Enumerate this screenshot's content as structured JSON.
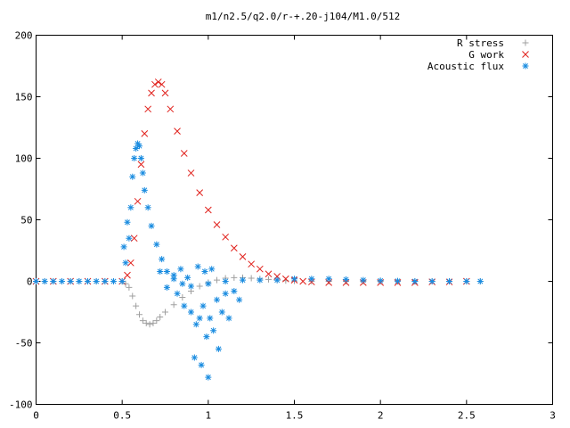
{
  "chart_data": {
    "type": "scatter",
    "title": "m1/n2.5/q2.0/r-+.20-j104/M1.0/512",
    "xlabel": "",
    "ylabel": "",
    "xlim": [
      0,
      3
    ],
    "ylim": [
      -100,
      200
    ],
    "x_ticks": [
      {
        "value": 0,
        "label": "0"
      },
      {
        "value": 0.5,
        "label": "0.5"
      },
      {
        "value": 1,
        "label": "1"
      },
      {
        "value": 1.5,
        "label": "1.5"
      },
      {
        "value": 2,
        "label": "2"
      },
      {
        "value": 2.5,
        "label": "2.5"
      },
      {
        "value": 3,
        "label": "3"
      }
    ],
    "y_ticks": [
      {
        "value": -100,
        "label": "-100"
      },
      {
        "value": -50,
        "label": "-50"
      },
      {
        "value": 0,
        "label": "0"
      },
      {
        "value": 50,
        "label": "50"
      },
      {
        "value": 100,
        "label": "100"
      },
      {
        "value": 150,
        "label": "150"
      },
      {
        "value": 200,
        "label": "200"
      }
    ],
    "grid": false,
    "legend_position": "top-right",
    "series": [
      {
        "name": "R stress",
        "marker": "plus",
        "color": "#a0a0a0",
        "points": [
          [
            0.0,
            0
          ],
          [
            0.05,
            0
          ],
          [
            0.1,
            0
          ],
          [
            0.15,
            0
          ],
          [
            0.2,
            0
          ],
          [
            0.25,
            0
          ],
          [
            0.3,
            0
          ],
          [
            0.35,
            0
          ],
          [
            0.4,
            0
          ],
          [
            0.45,
            0
          ],
          [
            0.5,
            0
          ],
          [
            0.52,
            -2
          ],
          [
            0.54,
            -5
          ],
          [
            0.56,
            -12
          ],
          [
            0.58,
            -20
          ],
          [
            0.6,
            -27
          ],
          [
            0.62,
            -32
          ],
          [
            0.64,
            -34
          ],
          [
            0.66,
            -35
          ],
          [
            0.68,
            -34
          ],
          [
            0.7,
            -32
          ],
          [
            0.72,
            -29
          ],
          [
            0.75,
            -25
          ],
          [
            0.8,
            -19
          ],
          [
            0.85,
            -13
          ],
          [
            0.9,
            -8
          ],
          [
            0.95,
            -4
          ],
          [
            1.0,
            -1
          ],
          [
            1.05,
            1
          ],
          [
            1.1,
            2.5
          ],
          [
            1.15,
            3
          ],
          [
            1.2,
            3
          ],
          [
            1.25,
            2.5
          ],
          [
            1.3,
            2
          ],
          [
            1.35,
            1.5
          ],
          [
            1.4,
            1
          ],
          [
            1.45,
            0.5
          ],
          [
            1.5,
            0.3
          ],
          [
            1.6,
            0.1
          ],
          [
            1.7,
            0
          ],
          [
            1.8,
            0
          ],
          [
            1.9,
            0
          ],
          [
            2.0,
            0
          ],
          [
            2.1,
            0
          ],
          [
            2.2,
            0
          ],
          [
            2.3,
            0
          ],
          [
            2.4,
            0
          ],
          [
            2.5,
            0
          ],
          [
            2.58,
            0
          ]
        ]
      },
      {
        "name": "G work",
        "marker": "cross",
        "color": "#e0201b",
        "points": [
          [
            0.0,
            0
          ],
          [
            0.1,
            0
          ],
          [
            0.2,
            0
          ],
          [
            0.3,
            0
          ],
          [
            0.4,
            0
          ],
          [
            0.5,
            0
          ],
          [
            0.53,
            5
          ],
          [
            0.55,
            15
          ],
          [
            0.57,
            35
          ],
          [
            0.59,
            65
          ],
          [
            0.61,
            95
          ],
          [
            0.63,
            120
          ],
          [
            0.65,
            140
          ],
          [
            0.67,
            153
          ],
          [
            0.69,
            160
          ],
          [
            0.71,
            162
          ],
          [
            0.73,
            160
          ],
          [
            0.75,
            153
          ],
          [
            0.78,
            140
          ],
          [
            0.82,
            122
          ],
          [
            0.86,
            104
          ],
          [
            0.9,
            88
          ],
          [
            0.95,
            72
          ],
          [
            1.0,
            58
          ],
          [
            1.05,
            46
          ],
          [
            1.1,
            36
          ],
          [
            1.15,
            27
          ],
          [
            1.2,
            20
          ],
          [
            1.25,
            14
          ],
          [
            1.3,
            10
          ],
          [
            1.35,
            6
          ],
          [
            1.4,
            4
          ],
          [
            1.45,
            2
          ],
          [
            1.5,
            1
          ],
          [
            1.55,
            0
          ],
          [
            1.6,
            -0.5
          ],
          [
            1.7,
            -1
          ],
          [
            1.8,
            -1
          ],
          [
            1.9,
            -1
          ],
          [
            2.0,
            -1
          ],
          [
            2.1,
            -1
          ],
          [
            2.2,
            -1
          ],
          [
            2.3,
            -0.5
          ],
          [
            2.4,
            -0.5
          ],
          [
            2.5,
            0
          ]
        ]
      },
      {
        "name": "Acoustic flux",
        "marker": "star",
        "color": "#1a8ce0",
        "points": [
          [
            0.0,
            0
          ],
          [
            0.05,
            0
          ],
          [
            0.1,
            0
          ],
          [
            0.15,
            0
          ],
          [
            0.2,
            0
          ],
          [
            0.25,
            0
          ],
          [
            0.3,
            0
          ],
          [
            0.35,
            0
          ],
          [
            0.4,
            0
          ],
          [
            0.45,
            0
          ],
          [
            0.5,
            0
          ],
          [
            0.51,
            28
          ],
          [
            0.52,
            15
          ],
          [
            0.53,
            48
          ],
          [
            0.54,
            35
          ],
          [
            0.55,
            60
          ],
          [
            0.56,
            85
          ],
          [
            0.57,
            100
          ],
          [
            0.58,
            108
          ],
          [
            0.59,
            112
          ],
          [
            0.6,
            110
          ],
          [
            0.61,
            100
          ],
          [
            0.62,
            88
          ],
          [
            0.63,
            74
          ],
          [
            0.65,
            60
          ],
          [
            0.67,
            45
          ],
          [
            0.7,
            30
          ],
          [
            0.73,
            18
          ],
          [
            0.76,
            8
          ],
          [
            0.8,
            2
          ],
          [
            0.85,
            -2
          ],
          [
            0.9,
            -4
          ],
          [
            1.0,
            -2
          ],
          [
            1.1,
            0
          ],
          [
            1.2,
            1
          ],
          [
            1.3,
            1
          ],
          [
            1.4,
            1
          ],
          [
            1.5,
            2
          ],
          [
            1.6,
            2
          ],
          [
            1.7,
            2
          ],
          [
            1.8,
            1.5
          ],
          [
            1.9,
            1
          ],
          [
            2.0,
            0.5
          ],
          [
            2.1,
            0.3
          ],
          [
            2.2,
            0
          ],
          [
            2.3,
            0
          ],
          [
            2.4,
            0
          ],
          [
            2.5,
            0
          ],
          [
            2.58,
            0
          ],
          [
            0.72,
            8
          ],
          [
            0.76,
            -5
          ],
          [
            0.8,
            5
          ],
          [
            0.82,
            -10
          ],
          [
            0.84,
            10
          ],
          [
            0.86,
            -20
          ],
          [
            0.88,
            3
          ],
          [
            0.9,
            -25
          ],
          [
            0.92,
            -62
          ],
          [
            0.93,
            -35
          ],
          [
            0.94,
            12
          ],
          [
            0.95,
            -30
          ],
          [
            0.96,
            -68
          ],
          [
            0.97,
            -20
          ],
          [
            0.98,
            8
          ],
          [
            0.99,
            -45
          ],
          [
            1.0,
            -78
          ],
          [
            1.01,
            -30
          ],
          [
            1.02,
            10
          ],
          [
            1.03,
            -40
          ],
          [
            1.05,
            -15
          ],
          [
            1.06,
            -55
          ],
          [
            1.08,
            -25
          ],
          [
            1.1,
            -10
          ],
          [
            1.12,
            -30
          ],
          [
            1.15,
            -8
          ],
          [
            1.18,
            -15
          ]
        ]
      }
    ]
  }
}
